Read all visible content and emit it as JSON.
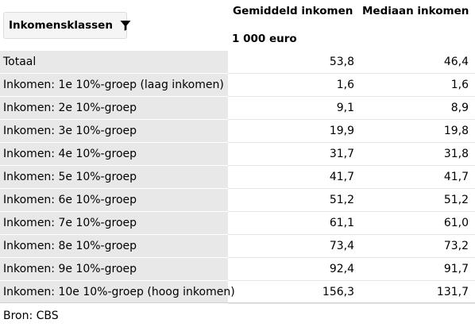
{
  "header": {
    "filter_label": "Inkomensklassen",
    "filter_icon": "filter-icon",
    "columns": [
      "Gemiddeld inkomen",
      "Mediaan inkomen"
    ],
    "unit": "1 000 euro"
  },
  "rows": [
    {
      "label": "Totaal",
      "gemiddeld": "53,8",
      "mediaan": "46,4"
    },
    {
      "label": "Inkomen: 1e 10%-groep (laag inkomen)",
      "gemiddeld": "1,6",
      "mediaan": "1,6"
    },
    {
      "label": "Inkomen: 2e 10%-groep",
      "gemiddeld": "9,1",
      "mediaan": "8,9"
    },
    {
      "label": "Inkomen: 3e 10%-groep",
      "gemiddeld": "19,9",
      "mediaan": "19,8"
    },
    {
      "label": "Inkomen: 4e 10%-groep",
      "gemiddeld": "31,7",
      "mediaan": "31,8"
    },
    {
      "label": "Inkomen: 5e 10%-groep",
      "gemiddeld": "41,7",
      "mediaan": "41,7"
    },
    {
      "label": "Inkomen: 6e 10%-groep",
      "gemiddeld": "51,2",
      "mediaan": "51,2"
    },
    {
      "label": "Inkomen: 7e 10%-groep",
      "gemiddeld": "61,1",
      "mediaan": "61,0"
    },
    {
      "label": "Inkomen: 8e 10%-groep",
      "gemiddeld": "73,4",
      "mediaan": "73,2"
    },
    {
      "label": "Inkomen: 9e 10%-groep",
      "gemiddeld": "92,4",
      "mediaan": "91,7"
    },
    {
      "label": "Inkomen: 10e 10%-groep (hoog inkomen)",
      "gemiddeld": "156,3",
      "mediaan": "131,7"
    }
  ],
  "footer": {
    "source": "Bron: CBS"
  }
}
